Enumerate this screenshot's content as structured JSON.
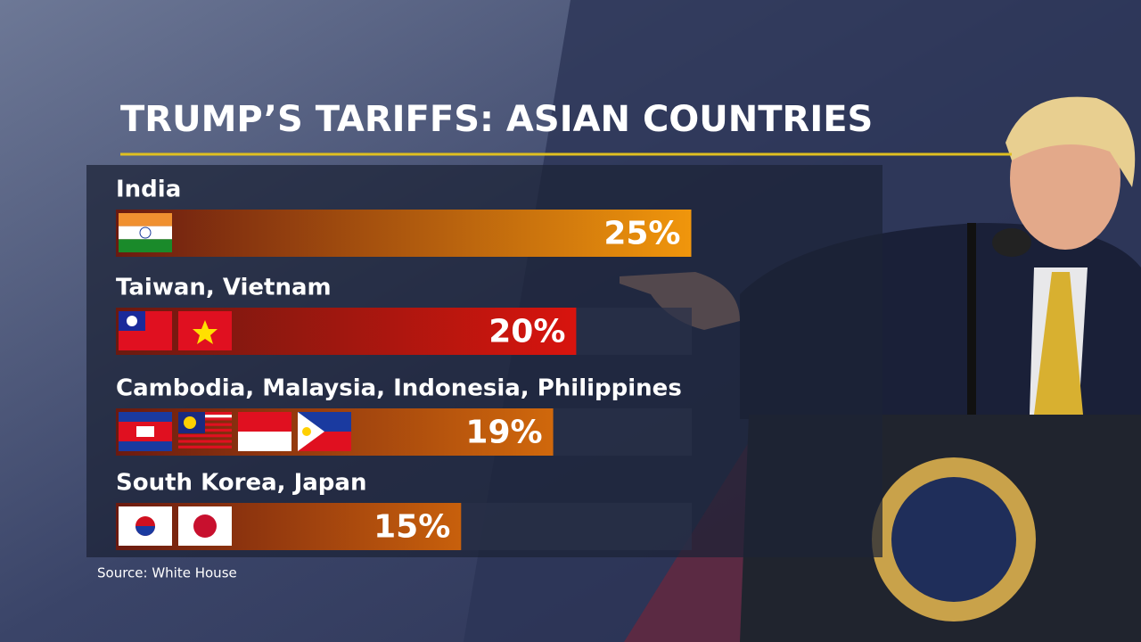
{
  "chart_data": {
    "type": "bar",
    "title": "TRUMP’S TARIFFS: ASIAN COUNTRIES",
    "categories": [
      "India",
      "Taiwan, Vietnam",
      "Cambodia, Malaysia, Indonesia, Philippines",
      "South Korea, Japan"
    ],
    "values": [
      25,
      20,
      19,
      15
    ],
    "value_labels": [
      "25%",
      "20%",
      "19%",
      "15%"
    ],
    "colors": [
      "#f0960c",
      "#d8140e",
      "#d0680c",
      "#c8600c"
    ],
    "source": "Source: White House"
  }
}
